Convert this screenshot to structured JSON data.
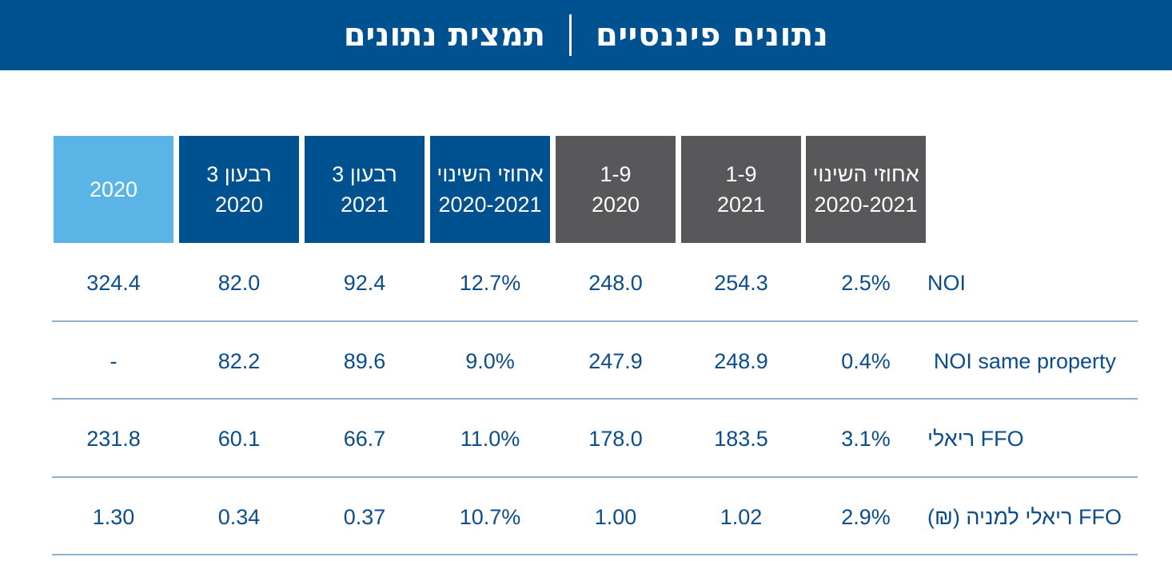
{
  "banner": {
    "title_bold": "נתונים פיננסיים",
    "title_light": "תמצית נתונים"
  },
  "colors": {
    "banner": "#00518f",
    "light_blue_header": "#5ab4e5",
    "navy_header": "#00518f",
    "gray_header": "#58585a",
    "body_text": "#0b4d8c",
    "rule": "#8fb0cf"
  },
  "table": {
    "headers": [
      {
        "line1": "2020",
        "line2": ""
      },
      {
        "line1": "רבעון 3",
        "line2": "2020"
      },
      {
        "line1": "רבעון 3",
        "line2": "2021"
      },
      {
        "line1": "אחוזי השינוי",
        "line2": "2020-2021"
      },
      {
        "line1": "1-9",
        "line2": "2020"
      },
      {
        "line1": "1-9",
        "line2": "2021"
      },
      {
        "line1": "אחוזי השינוי",
        "line2": "2020-2021"
      }
    ],
    "rows": [
      {
        "label": "NOI",
        "values": [
          "324.4",
          "82.0",
          "92.4",
          "12.7%",
          "248.0",
          "254.3",
          "2.5%"
        ]
      },
      {
        "label": "NOI same property",
        "values": [
          "-",
          "82.2",
          "89.6",
          "9.0%",
          "247.9",
          "248.9",
          "0.4%"
        ]
      },
      {
        "label": "FFO ריאלי",
        "values": [
          "231.8",
          "60.1",
          "66.7",
          "11.0%",
          "178.0",
          "183.5",
          "3.1%"
        ]
      },
      {
        "label": "FFO ריאלי למניה (₪)",
        "values": [
          "1.30",
          "0.34",
          "0.37",
          "10.7%",
          "1.00",
          "1.02",
          "2.9%"
        ]
      }
    ]
  }
}
